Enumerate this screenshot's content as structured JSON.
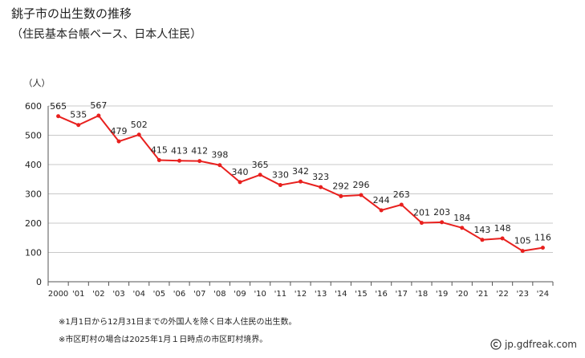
{
  "chart_data": {
    "type": "line",
    "title": "銚子市の出生数の推移",
    "subtitle": "（住民基本台帳ベース、日本人住民）",
    "ylabel": "（人）",
    "ylim": [
      0,
      600
    ],
    "yticks": [
      0,
      100,
      200,
      300,
      400,
      500,
      600
    ],
    "grid": true,
    "categories": [
      "2000",
      "'01",
      "'02",
      "'03",
      "'04",
      "'05",
      "'06",
      "'07",
      "'08",
      "'09",
      "'10",
      "'11",
      "'12",
      "'13",
      "'14",
      "'15",
      "'16",
      "'17",
      "'18",
      "'19",
      "'20",
      "'21",
      "'22",
      "'23",
      "'24"
    ],
    "series": [
      {
        "values": [
          565,
          535,
          567,
          479,
          502,
          415,
          413,
          412,
          398,
          340,
          365,
          330,
          342,
          323,
          292,
          296,
          244,
          263,
          201,
          203,
          184,
          143,
          148,
          105,
          116
        ]
      }
    ],
    "line_color": "#e8201e"
  },
  "notes": [
    "※1月1日から12月31日までの外国人を除く日本人住民の出生数。",
    "※市区町村の場合は2025年1月１日時点の市区町村境界。"
  ],
  "credit": "jp.gdfreak.com"
}
